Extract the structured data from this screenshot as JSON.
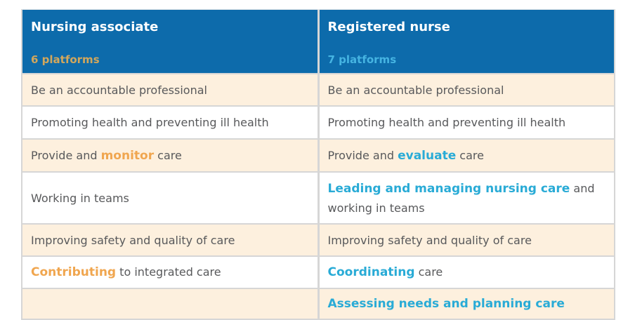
{
  "table": {
    "columns": [
      {
        "title": "Nursing associate",
        "subtitle": "6 platforms"
      },
      {
        "title": "Registered nurse",
        "subtitle": "7 platforms"
      }
    ],
    "rows": [
      {
        "left": [
          {
            "text": "Be an accountable professional",
            "style": "normal"
          }
        ],
        "right": [
          {
            "text": "Be an accountable professional",
            "style": "normal"
          }
        ]
      },
      {
        "left": [
          {
            "text": "Promoting health and preventing ill health",
            "style": "normal"
          }
        ],
        "right": [
          {
            "text": "Promoting health and preventing ill health",
            "style": "normal"
          }
        ]
      },
      {
        "left": [
          {
            "text": "Provide and ",
            "style": "normal"
          },
          {
            "text": "monitor",
            "style": "orange-bold"
          },
          {
            "text": " care",
            "style": "normal"
          }
        ],
        "right": [
          {
            "text": "Provide and ",
            "style": "normal"
          },
          {
            "text": "evaluate",
            "style": "cyan-bold"
          },
          {
            "text": " care",
            "style": "normal"
          }
        ]
      },
      {
        "left": [
          {
            "text": "Working in teams",
            "style": "normal"
          }
        ],
        "right": [
          {
            "text": "Leading and managing nursing care",
            "style": "cyan-bold"
          },
          {
            "text": " and working in teams",
            "style": "normal"
          }
        ]
      },
      {
        "left": [
          {
            "text": "Improving safety and quality of care",
            "style": "normal"
          }
        ],
        "right": [
          {
            "text": "Improving safety and quality of care",
            "style": "normal"
          }
        ]
      },
      {
        "left": [
          {
            "text": "Contributing",
            "style": "orange-bold"
          },
          {
            "text": " to integrated care",
            "style": "normal"
          }
        ],
        "right": [
          {
            "text": "Coordinating",
            "style": "cyan-bold"
          },
          {
            "text": " care",
            "style": "normal"
          }
        ]
      },
      {
        "left": [],
        "right": [
          {
            "text": "Assessing needs and planning care",
            "style": "cyan-bold"
          }
        ]
      }
    ]
  },
  "colors": {
    "header-bg": "#0d6bab",
    "header-title": "#ffffff",
    "left-subtitle": "#d2a75c",
    "right-subtitle": "#45b4e2",
    "row-cream": "#fdf0de",
    "row-white": "#ffffff",
    "body-text": "#58595b",
    "highlight-orange": "#f0a64f",
    "highlight-cyan": "#29abd6",
    "grid-line": "#d6d6d6"
  }
}
